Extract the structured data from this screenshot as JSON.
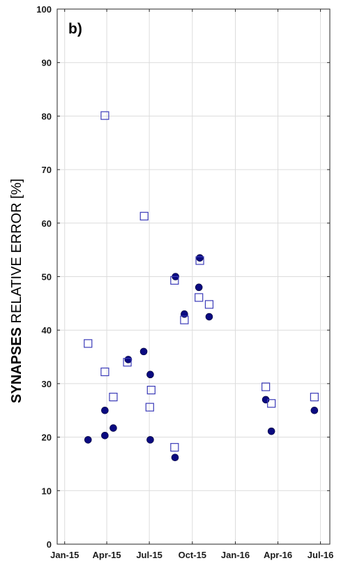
{
  "chart_data": {
    "type": "scatter",
    "panel_label": "b)",
    "ylabel_bold": "SYNAPSES",
    "ylabel_rest": " RELATIVE ERROR [%]",
    "xlabel": "",
    "x_ticks": [
      "2015-01-01",
      "2015-04-01",
      "2015-07-01",
      "2015-10-01",
      "2016-01-01",
      "2016-04-01",
      "2016-07-01"
    ],
    "x_tick_labels": [
      "Jan-15",
      "Apr-15",
      "Jul-15",
      "Oct-15",
      "Jan-16",
      "Apr-16",
      "Jul-16"
    ],
    "xlim": [
      "2014-12-16",
      "2016-07-21"
    ],
    "ylim": [
      0,
      100
    ],
    "y_ticks": [
      0,
      10,
      20,
      30,
      40,
      50,
      60,
      70,
      80,
      90,
      100
    ],
    "grid": true,
    "series": [
      {
        "marker": "filled-circle",
        "color": "#0a0a80",
        "points": [
          {
            "x": "2015-02-20",
            "y": 19.5
          },
          {
            "x": "2015-03-28",
            "y": 20.3
          },
          {
            "x": "2015-03-28",
            "y": 25.0
          },
          {
            "x": "2015-04-15",
            "y": 21.7
          },
          {
            "x": "2015-05-17",
            "y": 34.5
          },
          {
            "x": "2015-06-19",
            "y": 36.0
          },
          {
            "x": "2015-07-03",
            "y": 31.7
          },
          {
            "x": "2015-07-03",
            "y": 19.5
          },
          {
            "x": "2015-08-25",
            "y": 16.2
          },
          {
            "x": "2015-08-26",
            "y": 50.0
          },
          {
            "x": "2015-09-14",
            "y": 43.0
          },
          {
            "x": "2015-10-15",
            "y": 48.0
          },
          {
            "x": "2015-10-17",
            "y": 53.5
          },
          {
            "x": "2015-11-06",
            "y": 42.5
          },
          {
            "x": "2016-03-06",
            "y": 27.0
          },
          {
            "x": "2016-03-18",
            "y": 21.1
          },
          {
            "x": "2016-06-18",
            "y": 25.0
          }
        ]
      },
      {
        "marker": "open-square",
        "color": "#3b3bb8",
        "points": [
          {
            "x": "2015-02-20",
            "y": 37.5
          },
          {
            "x": "2015-03-28",
            "y": 80.1
          },
          {
            "x": "2015-03-28",
            "y": 32.2
          },
          {
            "x": "2015-04-15",
            "y": 27.5
          },
          {
            "x": "2015-05-15",
            "y": 34.0
          },
          {
            "x": "2015-06-20",
            "y": 61.3
          },
          {
            "x": "2015-07-02",
            "y": 25.6
          },
          {
            "x": "2015-07-05",
            "y": 28.8
          },
          {
            "x": "2015-08-24",
            "y": 49.3
          },
          {
            "x": "2015-08-24",
            "y": 18.1
          },
          {
            "x": "2015-09-14",
            "y": 41.9
          },
          {
            "x": "2015-10-15",
            "y": 46.1
          },
          {
            "x": "2015-10-17",
            "y": 53.0
          },
          {
            "x": "2015-11-06",
            "y": 44.8
          },
          {
            "x": "2016-03-06",
            "y": 29.4
          },
          {
            "x": "2016-03-18",
            "y": 26.3
          },
          {
            "x": "2016-06-18",
            "y": 27.5
          }
        ]
      }
    ]
  }
}
